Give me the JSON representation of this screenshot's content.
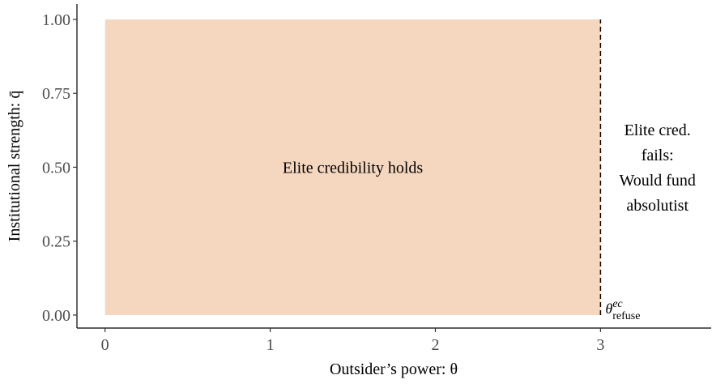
{
  "chart_data": {
    "type": "region",
    "x_label": "Outsider’s power: θ",
    "y_label": "Institutional strength: q̄",
    "xlim": [
      -0.17,
      3.67
    ],
    "ylim": [
      -0.044,
      1.052
    ],
    "xticks": [
      0,
      1,
      2,
      3
    ],
    "yticks": [
      {
        "value": 0,
        "label": "0.00"
      },
      {
        "value": 0.25,
        "label": "0.25"
      },
      {
        "value": 0.5,
        "label": "0.50"
      },
      {
        "value": 0.75,
        "label": "0.75"
      },
      {
        "value": 1,
        "label": "1.00"
      }
    ],
    "regions": [
      {
        "label": "Elite credibility holds",
        "xmin": 0,
        "xmax": 3,
        "ymin": 0,
        "ymax": 1,
        "color": "#f5d7bf"
      }
    ],
    "vline": {
      "x": 3,
      "ymin": 0,
      "ymax": 1,
      "style": "dashed",
      "color": "#000000"
    },
    "fail_label": [
      "Elite cred.",
      "fails:",
      "Would fund",
      "absolutist"
    ],
    "threshold_label": {
      "base": "θ",
      "sup": "ec",
      "sub": "refuse"
    }
  }
}
